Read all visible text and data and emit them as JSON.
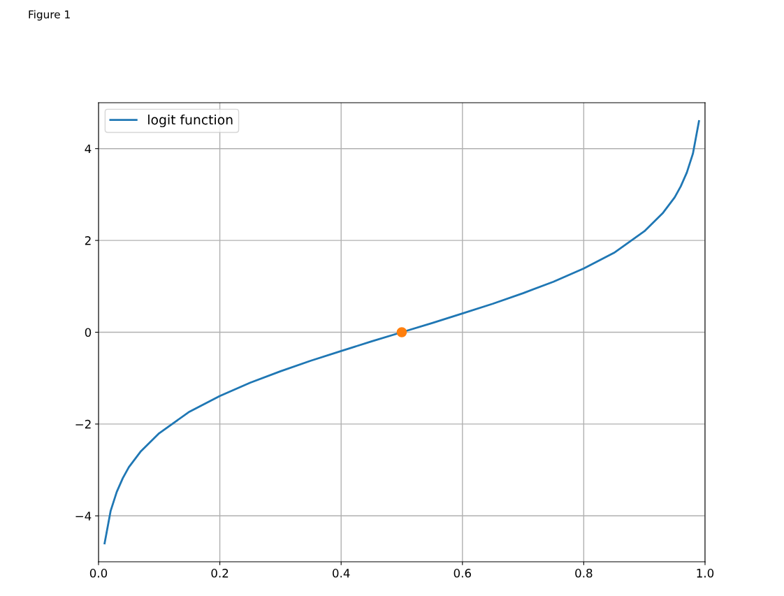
{
  "chart_data": {
    "type": "line",
    "annotations": [
      "Figure 1"
    ],
    "xlim": [
      0,
      1
    ],
    "ylim": [
      -5,
      5
    ],
    "xticks": [
      {
        "value": 0,
        "label": "0.0"
      },
      {
        "value": 0.2,
        "label": "0.2"
      },
      {
        "value": 0.4,
        "label": "0.4"
      },
      {
        "value": 0.6,
        "label": "0.6"
      },
      {
        "value": 0.8,
        "label": "0.8"
      },
      {
        "value": 1,
        "label": "1.0"
      }
    ],
    "yticks": [
      {
        "value": -4,
        "label": "−4"
      },
      {
        "value": -2,
        "label": "−2"
      },
      0,
      2,
      4
    ],
    "grid": true,
    "legend": "top left",
    "series": [
      {
        "name": "logit function",
        "color": "#1f77b4",
        "marker": "none",
        "line_style": "solid",
        "x": [
          0.01,
          0.02,
          0.03,
          0.04,
          0.05,
          0.07,
          0.1,
          0.15,
          0.2,
          0.25,
          0.3,
          0.35,
          0.4,
          0.45,
          0.5,
          0.55,
          0.6,
          0.65,
          0.7,
          0.75,
          0.8,
          0.85,
          0.9,
          0.93,
          0.95,
          0.96,
          0.97,
          0.98,
          0.99
        ],
        "values": [
          -4.6,
          -3.89,
          -3.48,
          -3.18,
          -2.94,
          -2.59,
          -2.2,
          -1.73,
          -1.39,
          -1.1,
          -0.85,
          -0.62,
          -0.41,
          -0.2,
          0,
          0.2,
          0.41,
          0.62,
          0.85,
          1.1,
          1.39,
          1.73,
          2.2,
          2.59,
          2.94,
          3.18,
          3.48,
          3.89,
          4.6
        ]
      },
      {
        "type": "scatter",
        "color": "#ff7f0e",
        "marker": "circle",
        "x": [
          0.5
        ],
        "values": [
          0
        ]
      }
    ]
  }
}
